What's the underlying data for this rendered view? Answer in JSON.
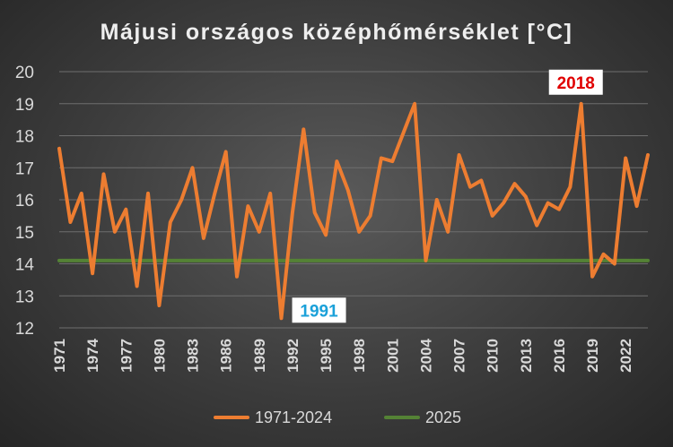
{
  "chart_data": {
    "type": "line",
    "title": "Májusi országos középhőmérséklet [°C]",
    "xlabel": "",
    "ylabel": "",
    "ylim": [
      12,
      20
    ],
    "yticks": [
      12,
      13,
      14,
      15,
      16,
      17,
      18,
      19,
      20
    ],
    "xtick_labels": [
      "1971",
      "1974",
      "1977",
      "1980",
      "1983",
      "1986",
      "1989",
      "1992",
      "1995",
      "1998",
      "2001",
      "2004",
      "2007",
      "2010",
      "2013",
      "2016",
      "2019",
      "2022"
    ],
    "grid": true,
    "legend_position": "bottom",
    "series": [
      {
        "name": "1971-2024",
        "color": "#ed7d31",
        "x": [
          1971,
          1972,
          1973,
          1974,
          1975,
          1976,
          1977,
          1978,
          1979,
          1980,
          1981,
          1982,
          1983,
          1984,
          1985,
          1986,
          1987,
          1988,
          1989,
          1990,
          1991,
          1992,
          1993,
          1994,
          1995,
          1996,
          1997,
          1998,
          1999,
          2000,
          2001,
          2002,
          2003,
          2004,
          2005,
          2006,
          2007,
          2008,
          2009,
          2010,
          2011,
          2012,
          2013,
          2014,
          2015,
          2016,
          2017,
          2018,
          2019,
          2020,
          2021,
          2022,
          2023,
          2024
        ],
        "values": [
          17.6,
          15.3,
          16.2,
          13.7,
          16.8,
          15.0,
          15.7,
          13.3,
          16.2,
          12.7,
          15.3,
          16.0,
          17.0,
          14.8,
          16.2,
          17.5,
          13.6,
          15.8,
          15.0,
          16.2,
          12.3,
          15.6,
          18.2,
          15.6,
          14.9,
          17.2,
          16.3,
          15.0,
          15.5,
          17.3,
          17.2,
          18.1,
          19.0,
          14.1,
          16.0,
          15.0,
          17.4,
          16.4,
          16.6,
          15.5,
          15.9,
          16.5,
          16.1,
          15.2,
          15.9,
          15.7,
          16.4,
          19.0,
          13.6,
          14.3,
          14.0,
          17.3,
          15.8,
          17.4
        ]
      },
      {
        "name": "2025",
        "color": "#548235",
        "x": [
          1971,
          2024
        ],
        "values": [
          14.1,
          14.1
        ]
      }
    ],
    "annotations": [
      {
        "text": "2018",
        "x": 2018,
        "y": 19.0,
        "color": "#e00000"
      },
      {
        "text": "1991",
        "x": 1991,
        "y": 12.3,
        "color": "#1ba1d9"
      }
    ]
  }
}
